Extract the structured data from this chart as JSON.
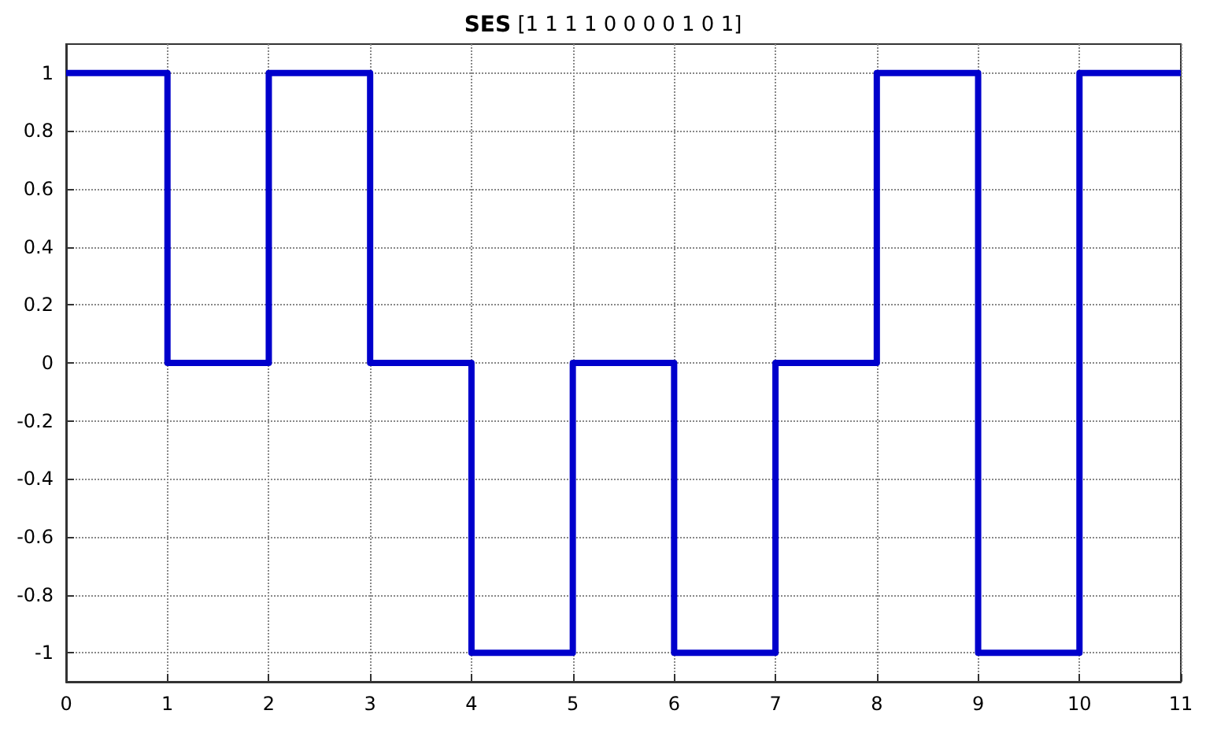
{
  "chart_data": {
    "type": "step",
    "title": "SES [1 1 1 1 0 0 0 0 1 0 1]",
    "x": [
      0,
      1,
      2,
      3,
      4,
      5,
      6,
      7,
      8,
      9,
      10,
      11
    ],
    "series": [
      {
        "color": "#0000cc",
        "values": [
          1,
          0,
          1,
          0,
          -1,
          0,
          -1,
          0,
          1,
          -1,
          1,
          1
        ]
      }
    ],
    "xlim": [
      0,
      11
    ],
    "xticks": [
      0,
      1,
      2,
      3,
      4,
      5,
      6,
      7,
      8,
      9,
      10,
      11
    ],
    "ylim": [
      -1.1,
      1.1
    ],
    "yticks": [
      -1,
      -0.8,
      -0.6,
      -0.4,
      -0.2,
      0,
      0.2,
      0.4,
      0.6,
      0.8,
      1
    ],
    "grid": true,
    "line_style": "solid",
    "marker": "none"
  }
}
